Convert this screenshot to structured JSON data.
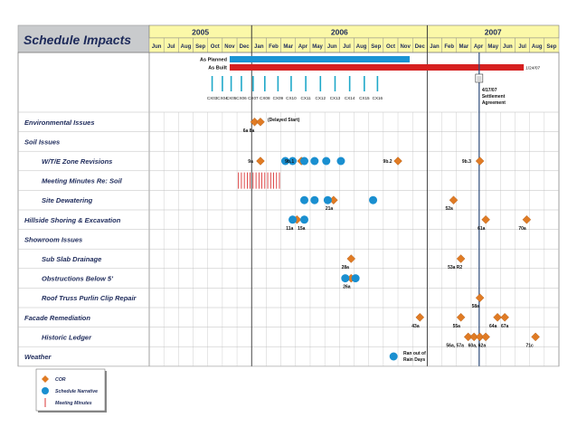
{
  "title": "Schedule Impacts",
  "years": [
    {
      "label": "2005",
      "start": 0,
      "span": 7
    },
    {
      "label": "2006",
      "start": 7,
      "span": 12
    },
    {
      "label": "2007",
      "start": 19,
      "span": 9
    }
  ],
  "months": [
    "Jun",
    "Jul",
    "Aug",
    "Sep",
    "Oct",
    "Nov",
    "Dec",
    "Jan",
    "Feb",
    "Mar",
    "Apr",
    "May",
    "Jun",
    "Jul",
    "Aug",
    "Sep",
    "Oct",
    "Nov",
    "Dec",
    "Jan",
    "Feb",
    "Mar",
    "Apr",
    "May",
    "Jun",
    "Jul",
    "Aug",
    "Sep"
  ],
  "bars": [
    {
      "label": "As Planned",
      "start": 5.5,
      "end": 17.8,
      "color": "#1a94d4"
    },
    {
      "label": "As Built",
      "start": 5.5,
      "end": 25.6,
      "color": "#d62020"
    }
  ],
  "bar_end_label": "1/24/07",
  "cx_labels": [
    {
      "label": "CX03",
      "m": 4.3
    },
    {
      "label": "CX04",
      "m": 5.0
    },
    {
      "label": "CX05",
      "m": 5.6
    },
    {
      "label": "CX06",
      "m": 6.3
    },
    {
      "label": "CX07",
      "m": 7.1
    },
    {
      "label": "CX08",
      "m": 7.9
    },
    {
      "label": "CX09",
      "m": 8.8
    },
    {
      "label": "CX10",
      "m": 9.7
    },
    {
      "label": "CX11",
      "m": 10.7
    },
    {
      "label": "CX12",
      "m": 11.7
    },
    {
      "label": "CX13",
      "m": 12.7
    },
    {
      "label": "CX14",
      "m": 13.7
    },
    {
      "label": "CX15",
      "m": 14.7
    },
    {
      "label": "CX16",
      "m": 15.6
    }
  ],
  "settlement_note": [
    "4/17/07",
    "Settlement",
    "Agreement"
  ],
  "settlement_m": 22.55,
  "rows": [
    {
      "label": "Environmental Issues",
      "indent": false
    },
    {
      "label": "Soil Issues",
      "indent": false
    },
    {
      "label": "W/T/E Zone Revisions",
      "indent": true
    },
    {
      "label": "Meeting Minutes Re: Soil",
      "indent": true
    },
    {
      "label": "Site Dewatering",
      "indent": true
    },
    {
      "label": "Hillside Shoring & Excavation",
      "indent": false
    },
    {
      "label": "Showroom Issues",
      "indent": false
    },
    {
      "label": "Sub Slab Drainage",
      "indent": true
    },
    {
      "label": "Obstructions Below 5'",
      "indent": true
    },
    {
      "label": "Roof Truss Purlin Clip Repair",
      "indent": true
    },
    {
      "label": "Facade Remediation",
      "indent": false
    },
    {
      "label": "Historic Ledger",
      "indent": true
    },
    {
      "label": "Weather",
      "indent": false
    }
  ],
  "chart_data": {
    "type": "scatter",
    "title": "Schedule Impacts",
    "x_axis": "months Jun 2005 – Sep 2007",
    "series": [
      {
        "name": "COR",
        "shape": "diamond",
        "color": "#e07b24",
        "points": [
          {
            "row": 0,
            "m": 7.2
          },
          {
            "row": 0,
            "m": 7.6
          },
          {
            "row": 2,
            "m": 7.6
          },
          {
            "row": 2,
            "m": 10.4
          },
          {
            "row": 2,
            "m": 17.0
          },
          {
            "row": 2,
            "m": 22.6
          },
          {
            "row": 4,
            "m": 12.6
          },
          {
            "row": 4,
            "m": 20.8
          },
          {
            "row": 5,
            "m": 10.1
          },
          {
            "row": 5,
            "m": 23.0
          },
          {
            "row": 5,
            "m": 25.8
          },
          {
            "row": 7,
            "m": 13.8
          },
          {
            "row": 7,
            "m": 21.3
          },
          {
            "row": 8,
            "m": 13.8
          },
          {
            "row": 9,
            "m": 22.6
          },
          {
            "row": 10,
            "m": 18.5
          },
          {
            "row": 10,
            "m": 21.3
          },
          {
            "row": 10,
            "m": 23.8
          },
          {
            "row": 10,
            "m": 24.3
          },
          {
            "row": 11,
            "m": 21.8
          },
          {
            "row": 11,
            "m": 22.2
          },
          {
            "row": 11,
            "m": 22.6
          },
          {
            "row": 11,
            "m": 23.0
          },
          {
            "row": 11,
            "m": 26.4
          }
        ]
      },
      {
        "name": "Schedule Narrative",
        "shape": "circle",
        "color": "#1a8fd0",
        "points": [
          {
            "row": 2,
            "m": 9.3
          },
          {
            "row": 2,
            "m": 9.8
          },
          {
            "row": 2,
            "m": 10.6
          },
          {
            "row": 2,
            "m": 11.3
          },
          {
            "row": 2,
            "m": 12.1
          },
          {
            "row": 2,
            "m": 13.1
          },
          {
            "row": 4,
            "m": 10.6
          },
          {
            "row": 4,
            "m": 11.3
          },
          {
            "row": 4,
            "m": 12.2
          },
          {
            "row": 4,
            "m": 15.3
          },
          {
            "row": 5,
            "m": 9.8
          },
          {
            "row": 5,
            "m": 10.6
          },
          {
            "row": 8,
            "m": 13.4
          },
          {
            "row": 8,
            "m": 14.1
          },
          {
            "row": 12,
            "m": 16.7
          }
        ]
      },
      {
        "name": "Meeting Minutes",
        "shape": "tick",
        "color": "#d62020",
        "points": [
          {
            "row": 3,
            "m": 6.1
          },
          {
            "row": 3,
            "m": 6.3
          },
          {
            "row": 3,
            "m": 6.5
          },
          {
            "row": 3,
            "m": 6.7
          },
          {
            "row": 3,
            "m": 6.9
          },
          {
            "row": 3,
            "m": 7.1
          },
          {
            "row": 3,
            "m": 7.3
          },
          {
            "row": 3,
            "m": 7.5
          },
          {
            "row": 3,
            "m": 7.7
          },
          {
            "row": 3,
            "m": 7.9
          },
          {
            "row": 3,
            "m": 8.1
          },
          {
            "row": 3,
            "m": 8.3
          },
          {
            "row": 3,
            "m": 8.5
          },
          {
            "row": 3,
            "m": 8.7
          },
          {
            "row": 3,
            "m": 8.9
          }
        ]
      }
    ],
    "annotations": [
      {
        "text": "(Delayed Start)",
        "row": 0,
        "m": 8.1,
        "pos": "right"
      },
      {
        "text": "6a 8a",
        "row": 0,
        "m": 6.8,
        "pos": "below"
      },
      {
        "text": "9a",
        "row": 2,
        "m": 7.1,
        "pos": "left"
      },
      {
        "text": "9b.1",
        "row": 2,
        "m": 9.9,
        "pos": "left"
      },
      {
        "text": "9b.2",
        "row": 2,
        "m": 16.6,
        "pos": "left"
      },
      {
        "text": "9b.3",
        "row": 2,
        "m": 22.0,
        "pos": "left"
      },
      {
        "text": "21a",
        "row": 4,
        "m": 12.3,
        "pos": "below"
      },
      {
        "text": "52a",
        "row": 4,
        "m": 20.5,
        "pos": "below"
      },
      {
        "text": "11a",
        "row": 5,
        "m": 9.6,
        "pos": "below"
      },
      {
        "text": "15a",
        "row": 5,
        "m": 10.4,
        "pos": "below"
      },
      {
        "text": "61a",
        "row": 5,
        "m": 22.7,
        "pos": "below"
      },
      {
        "text": "70a",
        "row": 5,
        "m": 25.5,
        "pos": "below"
      },
      {
        "text": "28a",
        "row": 7,
        "m": 13.4,
        "pos": "below"
      },
      {
        "text": "53a R2",
        "row": 7,
        "m": 20.9,
        "pos": "below"
      },
      {
        "text": "26a",
        "row": 8,
        "m": 13.5,
        "pos": "below"
      },
      {
        "text": "58a",
        "row": 9,
        "m": 22.3,
        "pos": "below"
      },
      {
        "text": "43a",
        "row": 10,
        "m": 18.2,
        "pos": "below"
      },
      {
        "text": "55a",
        "row": 10,
        "m": 21.0,
        "pos": "below"
      },
      {
        "text": "64a",
        "row": 10,
        "m": 23.5,
        "pos": "below"
      },
      {
        "text": "67a",
        "row": 10,
        "m": 24.3,
        "pos": "below"
      },
      {
        "text": "56a, 57a",
        "row": 11,
        "m": 20.9,
        "pos": "below"
      },
      {
        "text": "60a, 62a",
        "row": 11,
        "m": 22.4,
        "pos": "below"
      },
      {
        "text": "71c",
        "row": 11,
        "m": 26.0,
        "pos": "below"
      },
      {
        "text": "Ran out of",
        "row": 12,
        "m": 17.0,
        "pos": "right-top"
      },
      {
        "text": "Rain Days",
        "row": 12,
        "m": 17.0,
        "pos": "right-bottom"
      }
    ],
    "legend": {
      "placement": "bottom-left",
      "entries": [
        "COR",
        "Schedule Narrative",
        "Meeting Minutes"
      ]
    },
    "grid": true
  }
}
